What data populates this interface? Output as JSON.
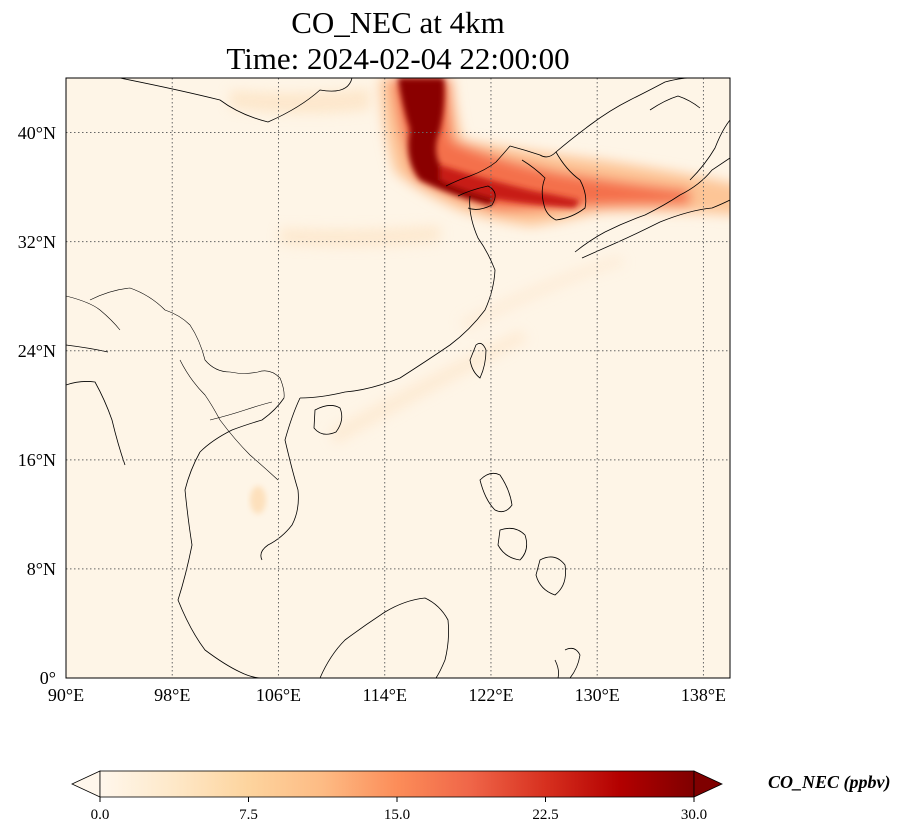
{
  "figure": {
    "title_line1": "CO_NEC at 4km",
    "title_line2": "Time: 2024-02-04 22:00:00"
  },
  "map": {
    "projection": "PlateCarree",
    "lon_range": [
      90,
      140
    ],
    "lat_range": [
      0,
      44
    ],
    "gridlines": "dotted",
    "y_ticks": [
      "0°",
      "8°N",
      "16°N",
      "24°N",
      "32°N",
      "40°N"
    ],
    "x_ticks": [
      "90°E",
      "98°E",
      "106°E",
      "114°E",
      "122°E",
      "130°E",
      "138°E"
    ],
    "field_name": "CO_NEC",
    "field_description": "plume of high CO_NEC over northeast China, the Yellow Sea and Korea, extending east over Japan"
  },
  "colorbar": {
    "label": "CO_NEC (ppbv)",
    "colormap": "OrRd",
    "extend": "both",
    "min": 0.0,
    "max": 30.0,
    "tick_labels": [
      "0.0",
      "7.5",
      "15.0",
      "22.5",
      "30.0"
    ],
    "colors": [
      "#fff7ec",
      "#fee8c8",
      "#fdd49e",
      "#fdbb84",
      "#fc8d59",
      "#ef6548",
      "#d7301f",
      "#b30000",
      "#7f0000"
    ]
  },
  "chart_data": {
    "type": "heatmap",
    "title": "CO_NEC at 4km\nTime: 2024-02-04 22:00:00",
    "xlabel": "",
    "ylabel": "",
    "xlim": [
      90,
      140
    ],
    "ylim": [
      0,
      44
    ],
    "value_range": [
      0.0,
      30.0
    ],
    "unit": "ppbv",
    "plume_features": [
      {
        "lon": 116.5,
        "lat": 42.5,
        "value": 30.0
      },
      {
        "lon": 117.5,
        "lat": 39.5,
        "value": 27.0
      },
      {
        "lon": 121.0,
        "lat": 37.8,
        "value": 20.0
      },
      {
        "lon": 125.0,
        "lat": 36.5,
        "value": 15.0
      },
      {
        "lon": 130.0,
        "lat": 37.0,
        "value": 9.0
      },
      {
        "lon": 136.0,
        "lat": 36.5,
        "value": 5.0
      },
      {
        "lon": 105.0,
        "lat": 34.0,
        "value": 3.0
      },
      {
        "lon": 104.0,
        "lat": 44.0,
        "value": 3.0
      }
    ]
  }
}
